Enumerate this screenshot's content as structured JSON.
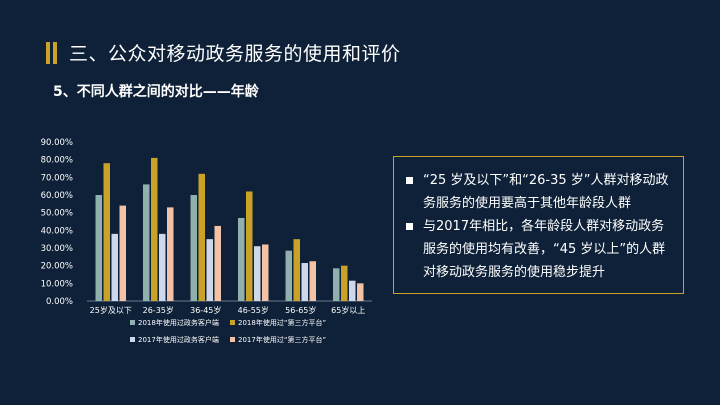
{
  "page": {
    "title": "三、公众对移动政务服务的使用和评价",
    "subtitle": "5、不同人群之间的对比——年龄"
  },
  "notes": [
    "“25 岁及以下”和“26-35 岁”人群对移动政务服务的使用要高于其他年龄段人群",
    "与2017年相比，各年龄段人群对移动政务服务的使用均有改善，“45 岁以上”的人群对移动政务服务的使用稳步提升"
  ],
  "colors": {
    "background": "#0e2138",
    "accent": "#c9a227"
  },
  "chart_data": {
    "type": "bar",
    "categories": [
      "25岁及以下",
      "26-35岁",
      "36-45岁",
      "46-55岁",
      "56-65岁",
      "65岁以上"
    ],
    "ylim": [
      0,
      90
    ],
    "yticks": [
      "0.00%",
      "10.00%",
      "20.00%",
      "30.00%",
      "40.00%",
      "50.00%",
      "60.00%",
      "70.00%",
      "80.00%",
      "90.00%"
    ],
    "grid": false,
    "legend_position": "bottom",
    "series": [
      {
        "name": "2018年使用过政务客户端",
        "color": "#8fb0ad",
        "values": [
          60,
          66,
          60,
          47,
          28.5,
          18.5
        ]
      },
      {
        "name": "2018年使用过“第三方平台”",
        "color": "#c9a227",
        "values": [
          78,
          81,
          72,
          62,
          35,
          20
        ]
      },
      {
        "name": "2017年使用过政务客户端",
        "color": "#cfd8ea",
        "values": [
          38,
          38,
          35,
          31,
          21.5,
          11.5
        ]
      },
      {
        "name": "2017年使用过“第三方平台”",
        "color": "#f3c2a6",
        "values": [
          54,
          53,
          42.5,
          32,
          22.5,
          10
        ]
      }
    ]
  }
}
